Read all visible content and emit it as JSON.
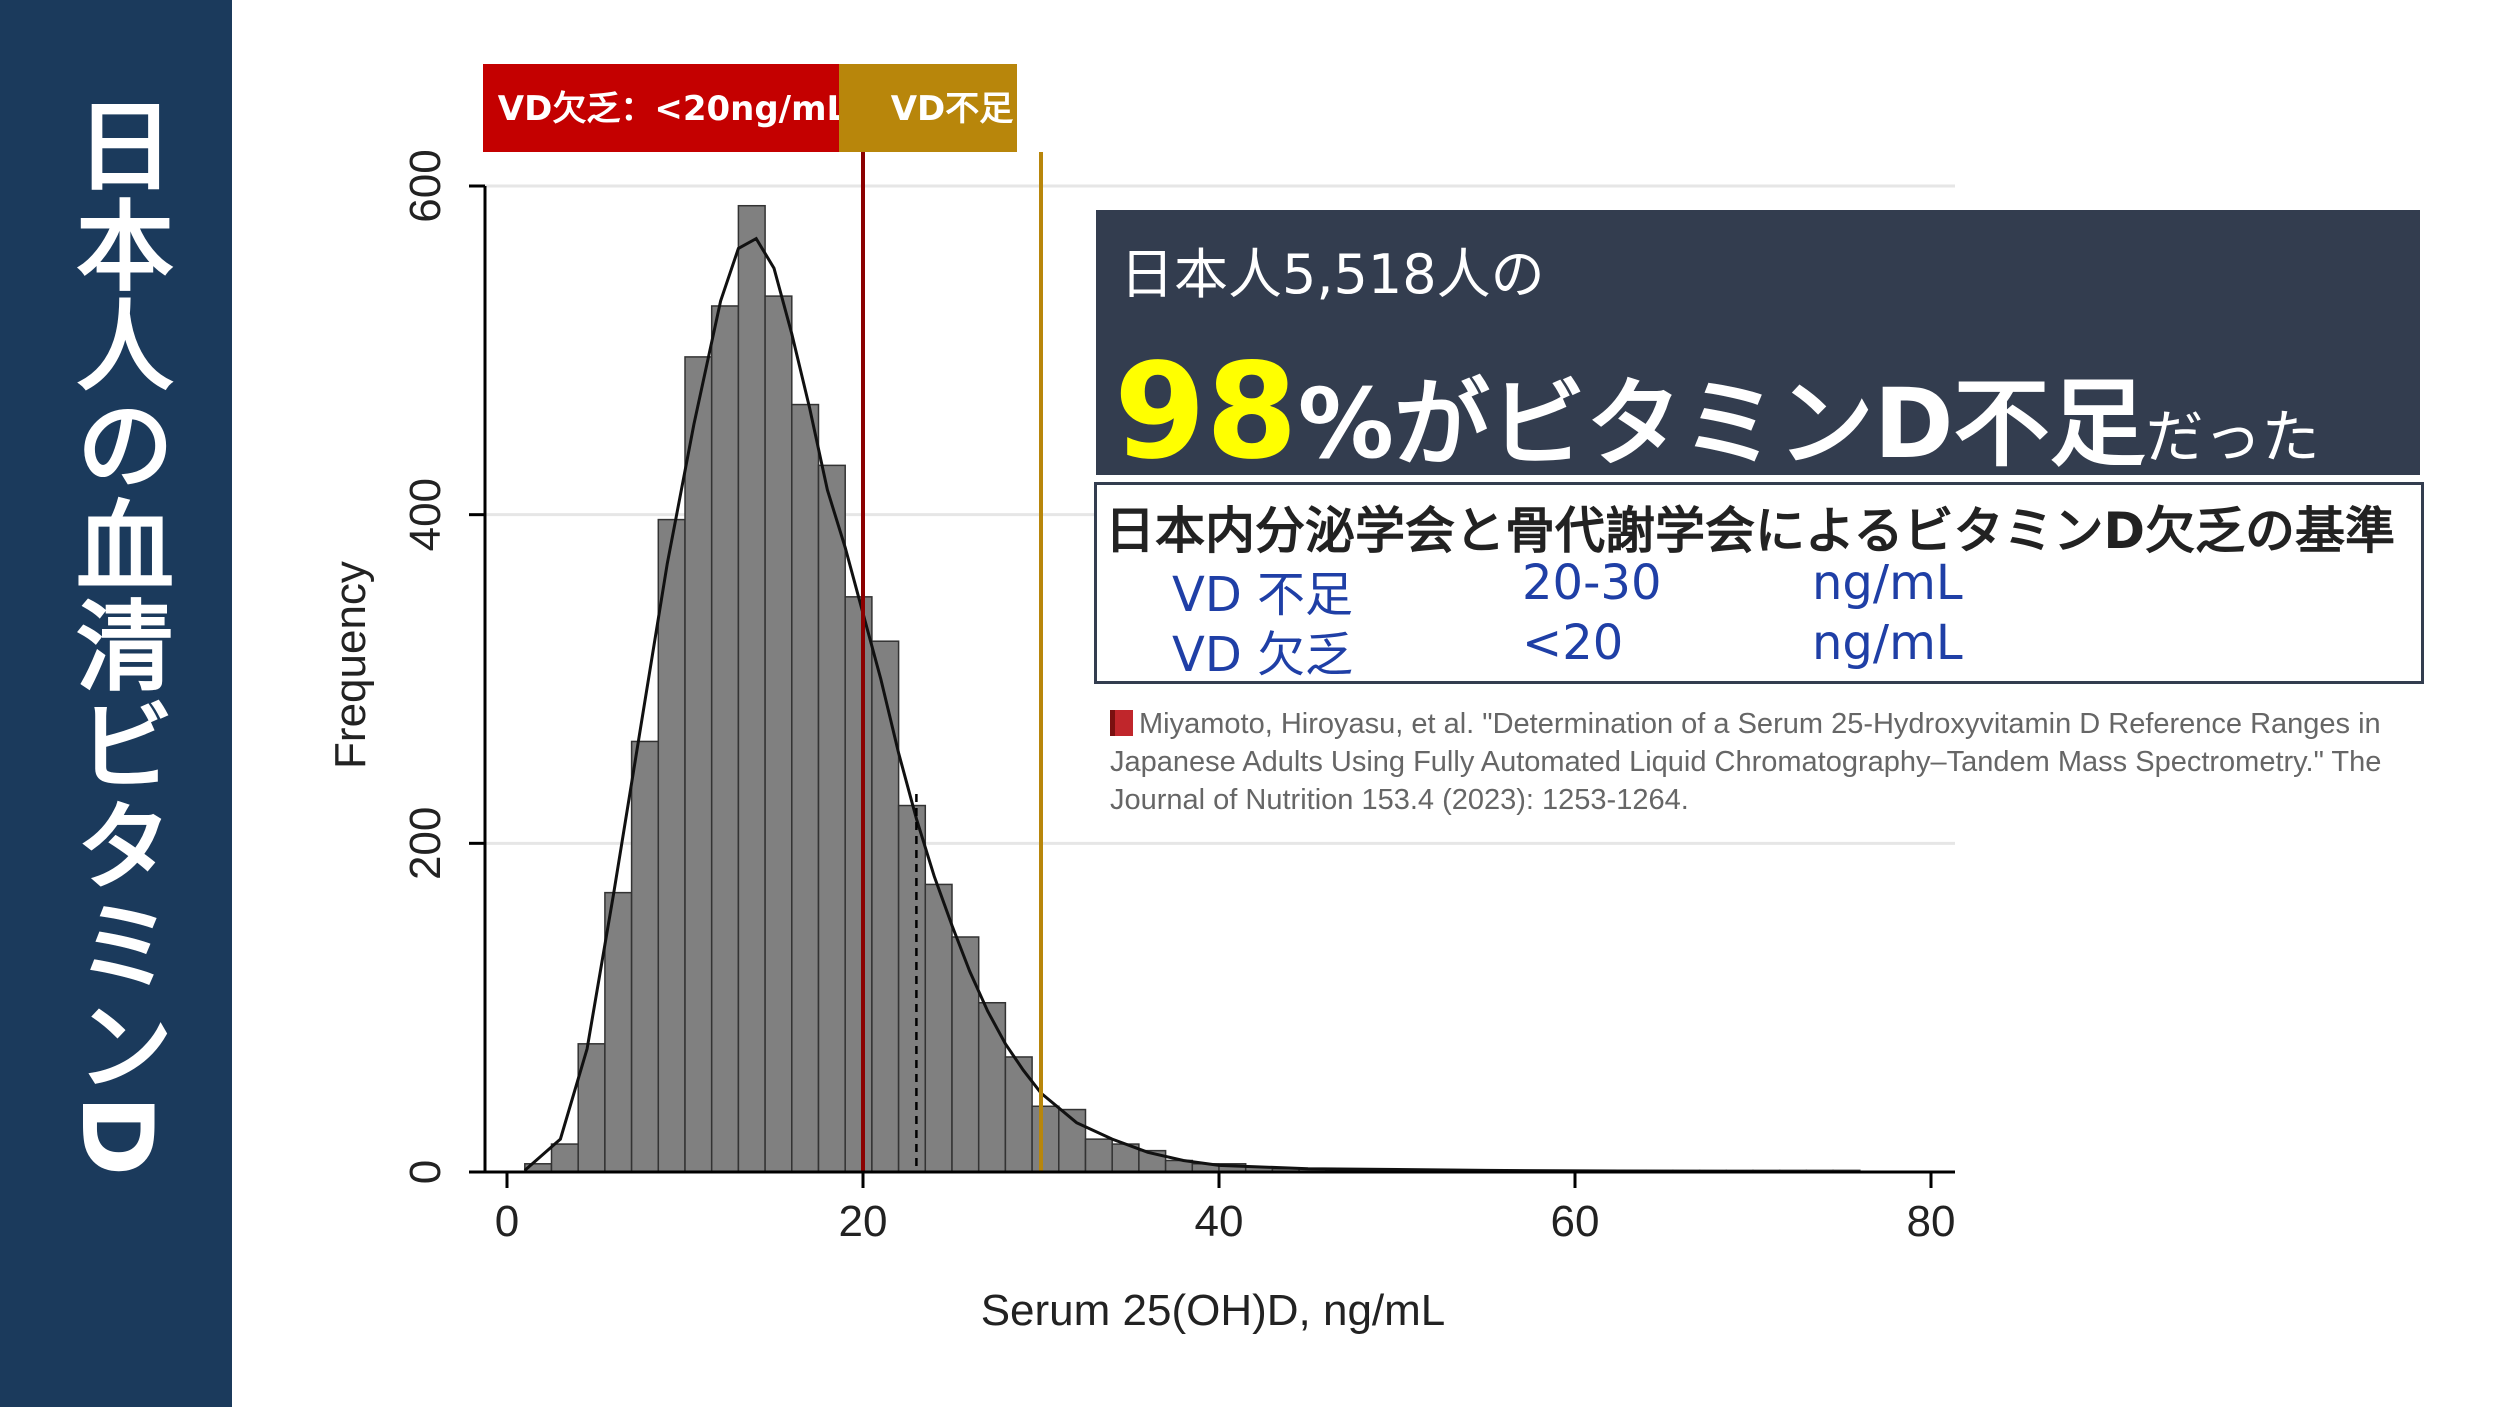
{
  "sidebar": {
    "title": "日本人の血清ビタミンD"
  },
  "headline": {
    "line1": "日本人5,518人の",
    "percent": "98",
    "main": "%がビタミンD不足",
    "tail": "だった"
  },
  "criteria": {
    "title": "日本内分泌学会と骨代謝学会によるビタミンD欠乏の基準",
    "rows": [
      {
        "label": "VD 不足",
        "range": "20-30",
        "unit": "ng/mL"
      },
      {
        "label": "VD 欠乏",
        "range": "<20",
        "unit": "ng/mL"
      }
    ]
  },
  "citation": "Miyamoto, Hiroyasu, et al. \"Determination of a Serum 25-Hydroxyvitamin D Reference Ranges in Japanese Adults Using Fully Automated Liquid Chromatography–Tandem Mass Spectrometry.\" The Journal of Nutrition 153.4 (2023): 1253-1264.",
  "colors": {
    "sidebar": "#1b3a5c",
    "bar_fill": "#808080",
    "deficiency": "#c40000",
    "insufficiency": "#b8860b",
    "headline_bg": "#333d4f",
    "highlight": "#ffff00"
  },
  "chart_data": {
    "type": "bar",
    "title": "",
    "xlabel": "Serum 25(OH)D, ng/mL",
    "ylabel": "Frequency",
    "xlim": [
      0,
      80
    ],
    "ylim": [
      0,
      600
    ],
    "xticks": [
      0,
      20,
      40,
      60,
      80
    ],
    "yticks": [
      0,
      200,
      400,
      600
    ],
    "bin_width": 1.5,
    "bin_start": 1.0,
    "values": [
      5,
      17,
      78,
      170,
      262,
      397,
      496,
      527,
      588,
      533,
      467,
      430,
      350,
      323,
      223,
      175,
      143,
      103,
      70,
      40,
      38,
      20,
      17,
      13,
      7,
      5,
      5,
      3,
      2,
      2,
      1,
      1,
      1,
      1,
      1,
      1,
      1,
      1,
      1,
      1,
      1,
      1,
      1,
      1,
      1,
      1,
      1,
      1,
      1,
      1
    ],
    "density_curve": [
      [
        1,
        1
      ],
      [
        3,
        20
      ],
      [
        4.5,
        75
      ],
      [
        6,
        170
      ],
      [
        7.5,
        270
      ],
      [
        9,
        370
      ],
      [
        10.5,
        455
      ],
      [
        12,
        530
      ],
      [
        13,
        562
      ],
      [
        14,
        568
      ],
      [
        15,
        550
      ],
      [
        16,
        510
      ],
      [
        17,
        465
      ],
      [
        18,
        415
      ],
      [
        19,
        380
      ],
      [
        20,
        340
      ],
      [
        21,
        300
      ],
      [
        22,
        255
      ],
      [
        23,
        215
      ],
      [
        24,
        180
      ],
      [
        25,
        150
      ],
      [
        26,
        122
      ],
      [
        27,
        98
      ],
      [
        28,
        78
      ],
      [
        29,
        62
      ],
      [
        30,
        48
      ],
      [
        32,
        30
      ],
      [
        34,
        20
      ],
      [
        36,
        12
      ],
      [
        38,
        7
      ],
      [
        40,
        4
      ],
      [
        45,
        2
      ],
      [
        55,
        1
      ],
      [
        74,
        0
      ]
    ],
    "annotations": [
      {
        "label": "VD欠乏：<20ng/mL",
        "x_from": 0,
        "x_to": 20,
        "color": "#c40000"
      },
      {
        "label": "VD不足",
        "x_from": 20,
        "x_to": 30,
        "color": "#b8860b"
      }
    ],
    "reference_lines": [
      {
        "x": 20,
        "color": "#8b0000",
        "style": "solid"
      },
      {
        "x": 30,
        "color": "#b8860b",
        "style": "solid"
      },
      {
        "x": 23,
        "color": "#000000",
        "style": "dashed"
      }
    ]
  }
}
